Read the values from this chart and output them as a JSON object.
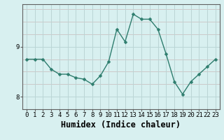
{
  "x": [
    0,
    1,
    2,
    3,
    4,
    5,
    6,
    7,
    8,
    9,
    10,
    11,
    12,
    13,
    14,
    15,
    16,
    17,
    18,
    19,
    20,
    21,
    22,
    23
  ],
  "y": [
    8.75,
    8.75,
    8.75,
    8.55,
    8.45,
    8.45,
    8.38,
    8.35,
    8.25,
    8.42,
    8.7,
    9.35,
    9.1,
    9.65,
    9.55,
    9.55,
    9.35,
    8.85,
    8.3,
    8.05,
    8.3,
    8.45,
    8.6,
    8.75
  ],
  "line_color": "#2e7d6e",
  "marker": "D",
  "marker_size": 2.5,
  "background_color": "#d8f0f0",
  "grid_color": "#b8d8d8",
  "xlabel": "Humidex (Indice chaleur)",
  "ylabel": "",
  "title": "",
  "ylim": [
    7.75,
    9.85
  ],
  "yticks": [
    8,
    9
  ],
  "xticks": [
    0,
    1,
    2,
    3,
    4,
    5,
    6,
    7,
    8,
    9,
    10,
    11,
    12,
    13,
    14,
    15,
    16,
    17,
    18,
    19,
    20,
    21,
    22,
    23
  ],
  "tick_fontsize": 6.5,
  "xlabel_fontsize": 8.5,
  "axis_color": "#606060"
}
